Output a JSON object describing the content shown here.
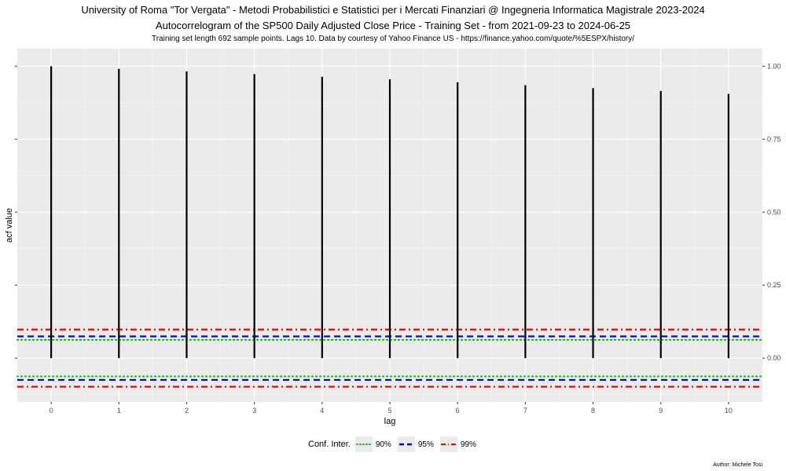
{
  "titles": {
    "main": "University of Roma \"Tor Vergata\" - Metodi Probabilistici e Statistici per i Mercati Finanziari @ Ingegneria Informatica Magistrale 2023-2024",
    "sub": "Autocorrelogram of the SP500 Daily Adjusted Close Price - Training Set - from 2021-09-23 to 2024-06-25",
    "caption": "Training set length 692 sample points. Lags 10. Data by courtesy of Yahoo Finance US - https://finance.yahoo.com/quote/%5ESPX/history/"
  },
  "legend": {
    "title": "Conf. Inter.",
    "items": [
      {
        "label": "90%",
        "color": "#00cc00",
        "style": "dotted"
      },
      {
        "label": "95%",
        "color": "#0000ff",
        "style": "dashed"
      },
      {
        "label": "99%",
        "color": "#ff0000",
        "style": "dotdash"
      }
    ]
  },
  "author": "Author: Michele Tosi",
  "chart_data": {
    "type": "bar",
    "xlabel": "lag",
    "ylabel": "acf value",
    "x": [
      0,
      1,
      2,
      3,
      4,
      5,
      6,
      7,
      8,
      9,
      10
    ],
    "values": [
      1.0,
      0.991,
      0.982,
      0.973,
      0.964,
      0.955,
      0.945,
      0.935,
      0.925,
      0.915,
      0.905
    ],
    "xlim": [
      -0.5,
      10.5
    ],
    "ylim": [
      -0.15,
      1.06
    ],
    "yticks": [
      0.0,
      0.25,
      0.5,
      0.75,
      1.0
    ],
    "ytick_labels": [
      "0.00",
      "0.25",
      "0.50",
      "0.75",
      "1.00"
    ],
    "conf_bands": [
      {
        "level": "90%",
        "upper": 0.0625,
        "lower": -0.0625,
        "color": "#00cc00",
        "style": "dotted"
      },
      {
        "level": "95%",
        "upper": 0.0745,
        "lower": -0.0745,
        "color": "#0000ff",
        "style": "dashed"
      },
      {
        "level": "99%",
        "upper": 0.098,
        "lower": -0.098,
        "color": "#ff0000",
        "style": "dotdash"
      }
    ],
    "grid": true,
    "legend_position": "bottom"
  }
}
